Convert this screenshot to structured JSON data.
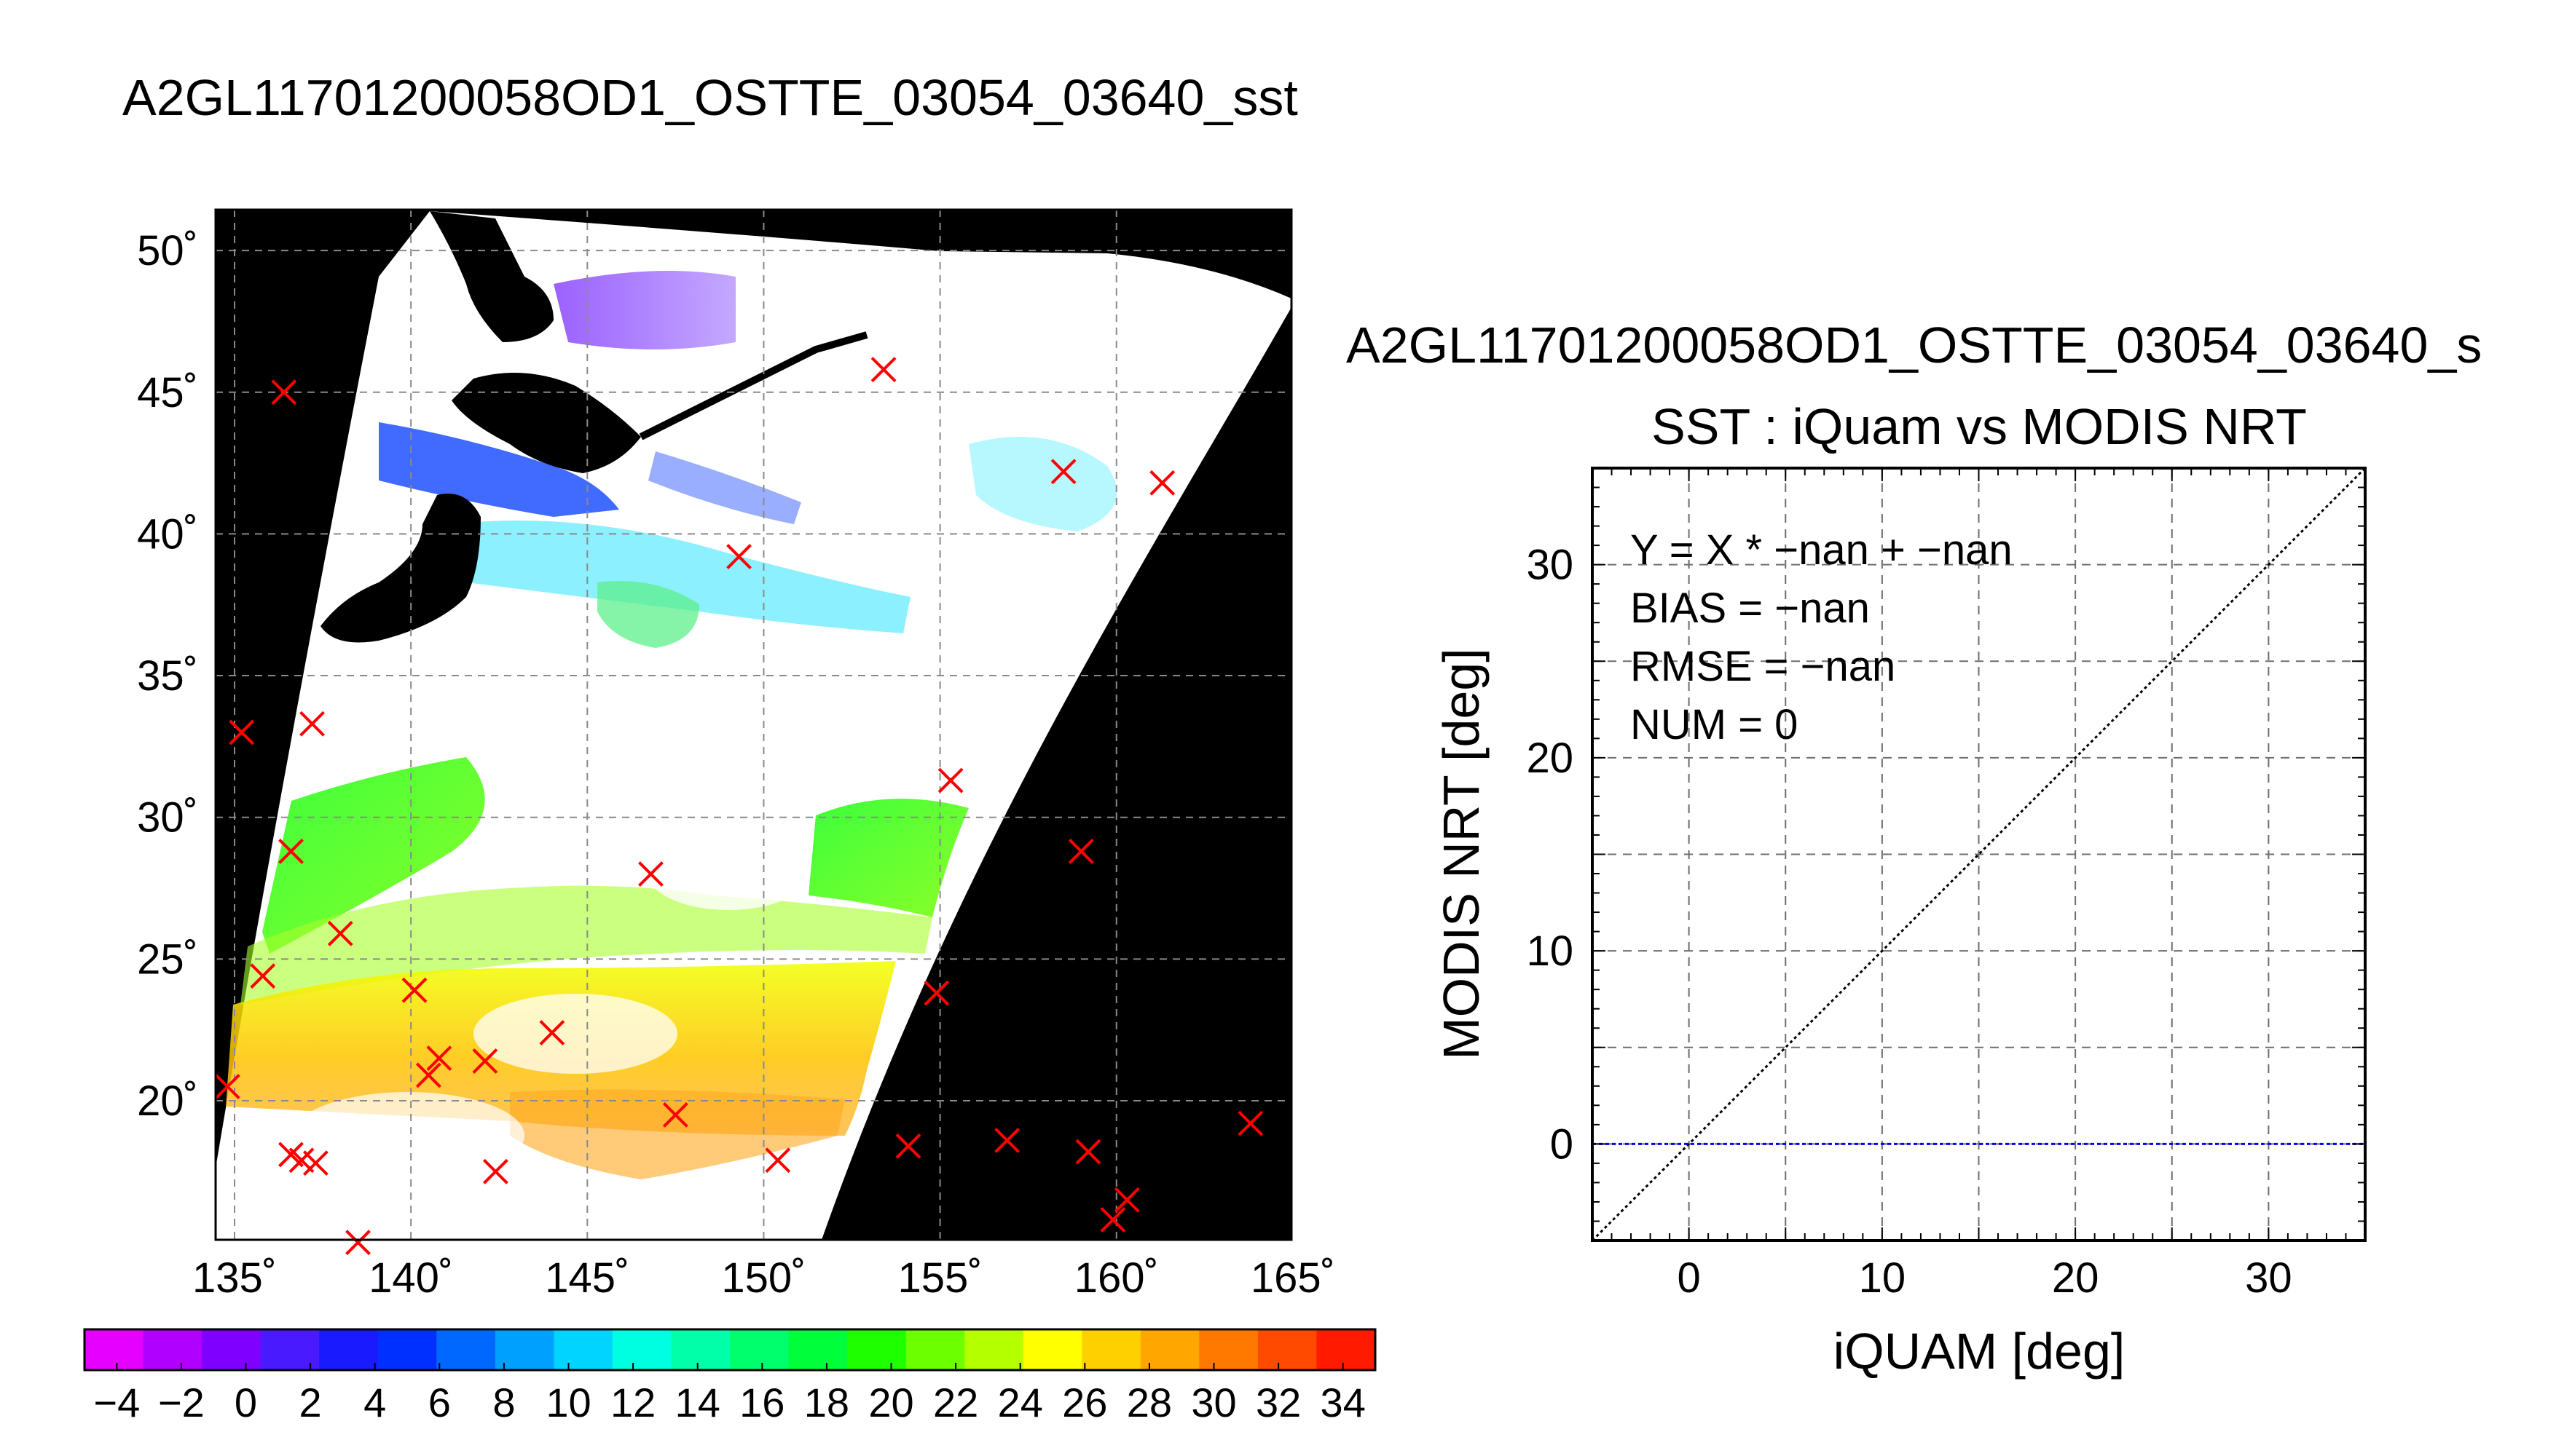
{
  "page": {
    "title": "A2GL11701200058OD1_OSTTE_03054_03640_sst"
  },
  "chart_data": [
    {
      "type": "scatter",
      "map": true,
      "title": "A2GL11701200058OD1_OSTTE_03054_03640_sst",
      "xlim": [
        135,
        165
      ],
      "ylim": [
        15,
        52
      ],
      "x_ticks": [
        135,
        140,
        145,
        150,
        155,
        160,
        165
      ],
      "x_tick_labels": [
        "135˚",
        "140˚",
        "145˚",
        "150˚",
        "155˚",
        "160˚",
        "165˚"
      ],
      "y_ticks": [
        20,
        25,
        30,
        35,
        40,
        45,
        50
      ],
      "y_tick_labels": [
        "20˚",
        "25˚",
        "30˚",
        "35˚",
        "40˚",
        "45˚",
        "50˚"
      ],
      "grid": true,
      "marker": "x",
      "marker_color": "#ff0000",
      "points": [
        {
          "x": 136.4,
          "y": 45.0
        },
        {
          "x": 153.4,
          "y": 45.8
        },
        {
          "x": 158.5,
          "y": 42.2
        },
        {
          "x": 161.3,
          "y": 41.8
        },
        {
          "x": 149.3,
          "y": 39.2
        },
        {
          "x": 135.2,
          "y": 33.0
        },
        {
          "x": 137.2,
          "y": 33.3
        },
        {
          "x": 155.3,
          "y": 31.3
        },
        {
          "x": 136.6,
          "y": 28.8
        },
        {
          "x": 146.8,
          "y": 28.0
        },
        {
          "x": 159.0,
          "y": 28.8
        },
        {
          "x": 138.0,
          "y": 25.9
        },
        {
          "x": 135.8,
          "y": 24.4
        },
        {
          "x": 140.1,
          "y": 23.9
        },
        {
          "x": 154.9,
          "y": 23.8
        },
        {
          "x": 144.0,
          "y": 22.4
        },
        {
          "x": 140.8,
          "y": 21.5
        },
        {
          "x": 142.1,
          "y": 21.4
        },
        {
          "x": 140.5,
          "y": 20.9
        },
        {
          "x": 134.8,
          "y": 20.5
        },
        {
          "x": 147.5,
          "y": 19.5
        },
        {
          "x": 163.8,
          "y": 19.2
        },
        {
          "x": 156.9,
          "y": 18.6
        },
        {
          "x": 154.1,
          "y": 18.4
        },
        {
          "x": 159.2,
          "y": 18.2
        },
        {
          "x": 136.6,
          "y": 18.1
        },
        {
          "x": 136.9,
          "y": 17.9
        },
        {
          "x": 137.3,
          "y": 17.8
        },
        {
          "x": 150.4,
          "y": 17.9
        },
        {
          "x": 142.4,
          "y": 17.5
        },
        {
          "x": 160.3,
          "y": 16.5
        },
        {
          "x": 159.9,
          "y": 15.8
        },
        {
          "x": 138.5,
          "y": 15.0
        }
      ],
      "colorbar": {
        "min": -5,
        "max": 35,
        "tick_labels": [
          "−4",
          "−2",
          "0",
          "2",
          "4",
          "6",
          "8",
          "10",
          "12",
          "14",
          "16",
          "18",
          "20",
          "22",
          "24",
          "26",
          "28",
          "30",
          "32",
          "34"
        ],
        "colors": [
          "#e600ff",
          "#b000ff",
          "#8000ff",
          "#4a1aff",
          "#1a1aff",
          "#0030ff",
          "#0068ff",
          "#00a0ff",
          "#00d4ff",
          "#00ffe0",
          "#00ffa8",
          "#00ff6c",
          "#00ff3a",
          "#1eff00",
          "#6cff00",
          "#b4ff00",
          "#ffff00",
          "#ffd000",
          "#ffa600",
          "#ff7800",
          "#ff4a00",
          "#ff1a00"
        ]
      }
    },
    {
      "type": "scatter",
      "title": "A2GL11701200058OD1_OSTTE_03054_03640_s",
      "subtitle": "SST : iQuam vs MODIS NRT",
      "xlabel": "iQUAM [deg]",
      "ylabel": "MODIS NRT [deg]",
      "xlim": [
        -5,
        35
      ],
      "ylim": [
        -5,
        35
      ],
      "x_ticks": [
        0,
        10,
        20,
        30
      ],
      "y_ticks": [
        0,
        10,
        20,
        30
      ],
      "grid": true,
      "points": [],
      "lines": [
        {
          "kind": "identity",
          "from": [
            -5,
            -5
          ],
          "to": [
            35,
            35
          ],
          "color": "#000000"
        },
        {
          "kind": "zero",
          "from": [
            -5,
            0
          ],
          "to": [
            35,
            0
          ],
          "color": "#0000ff"
        }
      ],
      "stats_text": [
        "Y = X * −nan + −nan",
        "BIAS = −nan",
        "RMSE = −nan",
        "NUM = 0"
      ]
    }
  ]
}
